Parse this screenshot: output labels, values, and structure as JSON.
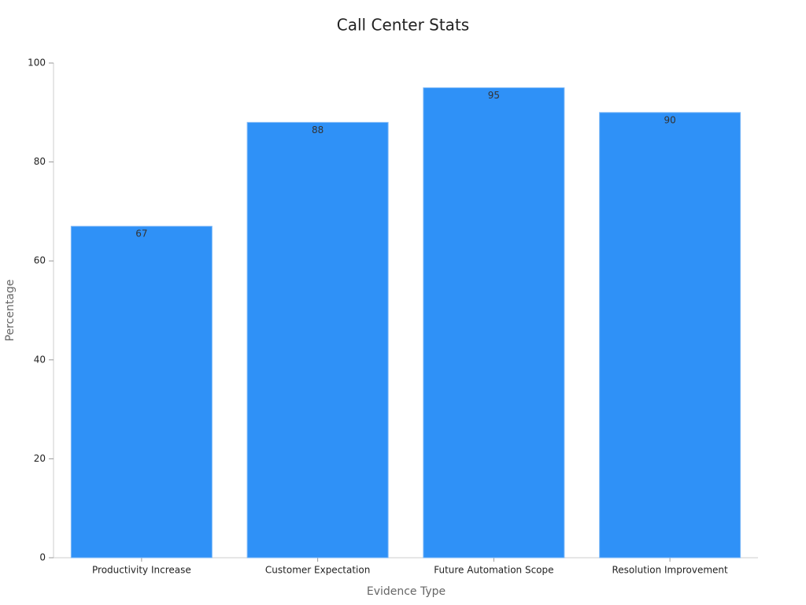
{
  "chart_data": {
    "type": "bar",
    "title": "Call Center Stats",
    "x_label": "Evidence Type",
    "y_label": "Percentage",
    "categories": [
      "Productivity Increase",
      "Customer Expectation",
      "Future Automation Scope",
      "Resolution Improvement"
    ],
    "values": [
      67,
      88,
      95,
      90
    ],
    "color": "#2f91f7",
    "ylim": [
      0,
      100
    ],
    "yticks": [
      0,
      20,
      40,
      60,
      80,
      100
    ],
    "grid": false
  }
}
